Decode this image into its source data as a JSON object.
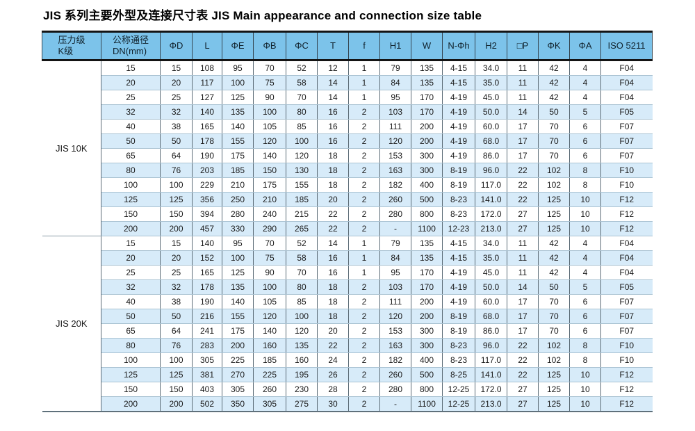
{
  "title": "JIS 系列主要外型及连接尺寸表  JIS Main appearance and connection size table",
  "colors": {
    "header_bg": "#7cc3ea",
    "stripe_bg": "#d7ebf9",
    "thick_border": "#141414",
    "grid_vertical": "#5a6a75",
    "grid_horizontal": "#a9c2d2"
  },
  "table": {
    "columns": [
      {
        "lines": [
          "压力级",
          "K级"
        ]
      },
      {
        "lines": [
          "公称通径",
          "DN(mm)"
        ]
      },
      {
        "lines": [
          "ΦD"
        ]
      },
      {
        "lines": [
          "L"
        ]
      },
      {
        "lines": [
          "ΦE"
        ]
      },
      {
        "lines": [
          "ΦB"
        ]
      },
      {
        "lines": [
          "ΦC"
        ]
      },
      {
        "lines": [
          "T"
        ]
      },
      {
        "lines": [
          "f"
        ]
      },
      {
        "lines": [
          "H1"
        ]
      },
      {
        "lines": [
          "W"
        ]
      },
      {
        "lines": [
          "N-Φh"
        ]
      },
      {
        "lines": [
          "H2"
        ]
      },
      {
        "lines": [
          "□P"
        ]
      },
      {
        "lines": [
          "ΦK"
        ]
      },
      {
        "lines": [
          "ΦA"
        ]
      },
      {
        "lines": [
          "ISO 5211"
        ]
      }
    ],
    "sections": [
      {
        "label": "JIS 10K",
        "rows": [
          [
            "15",
            "15",
            "108",
            "95",
            "70",
            "52",
            "12",
            "1",
            "79",
            "135",
            "4-15",
            "34.0",
            "11",
            "42",
            "4",
            "F04"
          ],
          [
            "20",
            "20",
            "117",
            "100",
            "75",
            "58",
            "14",
            "1",
            "84",
            "135",
            "4-15",
            "35.0",
            "11",
            "42",
            "4",
            "F04"
          ],
          [
            "25",
            "25",
            "127",
            "125",
            "90",
            "70",
            "14",
            "1",
            "95",
            "170",
            "4-19",
            "45.0",
            "11",
            "42",
            "4",
            "F04"
          ],
          [
            "32",
            "32",
            "140",
            "135",
            "100",
            "80",
            "16",
            "2",
            "103",
            "170",
            "4-19",
            "50.0",
            "14",
            "50",
            "5",
            "F05"
          ],
          [
            "40",
            "38",
            "165",
            "140",
            "105",
            "85",
            "16",
            "2",
            "111",
            "200",
            "4-19",
            "60.0",
            "17",
            "70",
            "6",
            "F07"
          ],
          [
            "50",
            "50",
            "178",
            "155",
            "120",
            "100",
            "16",
            "2",
            "120",
            "200",
            "4-19",
            "68.0",
            "17",
            "70",
            "6",
            "F07"
          ],
          [
            "65",
            "64",
            "190",
            "175",
            "140",
            "120",
            "18",
            "2",
            "153",
            "300",
            "4-19",
            "86.0",
            "17",
            "70",
            "6",
            "F07"
          ],
          [
            "80",
            "76",
            "203",
            "185",
            "150",
            "130",
            "18",
            "2",
            "163",
            "300",
            "8-19",
            "96.0",
            "22",
            "102",
            "8",
            "F10"
          ],
          [
            "100",
            "100",
            "229",
            "210",
            "175",
            "155",
            "18",
            "2",
            "182",
            "400",
            "8-19",
            "117.0",
            "22",
            "102",
            "8",
            "F10"
          ],
          [
            "125",
            "125",
            "356",
            "250",
            "210",
            "185",
            "20",
            "2",
            "260",
            "500",
            "8-23",
            "141.0",
            "22",
            "125",
            "10",
            "F12"
          ],
          [
            "150",
            "150",
            "394",
            "280",
            "240",
            "215",
            "22",
            "2",
            "280",
            "800",
            "8-23",
            "172.0",
            "27",
            "125",
            "10",
            "F12"
          ],
          [
            "200",
            "200",
            "457",
            "330",
            "290",
            "265",
            "22",
            "2",
            "-",
            "1100",
            "12-23",
            "213.0",
            "27",
            "125",
            "10",
            "F12"
          ]
        ]
      },
      {
        "label": "JIS 20K",
        "rows": [
          [
            "15",
            "15",
            "140",
            "95",
            "70",
            "52",
            "14",
            "1",
            "79",
            "135",
            "4-15",
            "34.0",
            "11",
            "42",
            "4",
            "F04"
          ],
          [
            "20",
            "20",
            "152",
            "100",
            "75",
            "58",
            "16",
            "1",
            "84",
            "135",
            "4-15",
            "35.0",
            "11",
            "42",
            "4",
            "F04"
          ],
          [
            "25",
            "25",
            "165",
            "125",
            "90",
            "70",
            "16",
            "1",
            "95",
            "170",
            "4-19",
            "45.0",
            "11",
            "42",
            "4",
            "F04"
          ],
          [
            "32",
            "32",
            "178",
            "135",
            "100",
            "80",
            "18",
            "2",
            "103",
            "170",
            "4-19",
            "50.0",
            "14",
            "50",
            "5",
            "F05"
          ],
          [
            "40",
            "38",
            "190",
            "140",
            "105",
            "85",
            "18",
            "2",
            "111",
            "200",
            "4-19",
            "60.0",
            "17",
            "70",
            "6",
            "F07"
          ],
          [
            "50",
            "50",
            "216",
            "155",
            "120",
            "100",
            "18",
            "2",
            "120",
            "200",
            "8-19",
            "68.0",
            "17",
            "70",
            "6",
            "F07"
          ],
          [
            "65",
            "64",
            "241",
            "175",
            "140",
            "120",
            "20",
            "2",
            "153",
            "300",
            "8-19",
            "86.0",
            "17",
            "70",
            "6",
            "F07"
          ],
          [
            "80",
            "76",
            "283",
            "200",
            "160",
            "135",
            "22",
            "2",
            "163",
            "300",
            "8-23",
            "96.0",
            "22",
            "102",
            "8",
            "F10"
          ],
          [
            "100",
            "100",
            "305",
            "225",
            "185",
            "160",
            "24",
            "2",
            "182",
            "400",
            "8-23",
            "117.0",
            "22",
            "102",
            "8",
            "F10"
          ],
          [
            "125",
            "125",
            "381",
            "270",
            "225",
            "195",
            "26",
            "2",
            "260",
            "500",
            "8-25",
            "141.0",
            "22",
            "125",
            "10",
            "F12"
          ],
          [
            "150",
            "150",
            "403",
            "305",
            "260",
            "230",
            "28",
            "2",
            "280",
            "800",
            "12-25",
            "172.0",
            "27",
            "125",
            "10",
            "F12"
          ],
          [
            "200",
            "200",
            "502",
            "350",
            "305",
            "275",
            "30",
            "2",
            "-",
            "1100",
            "12-25",
            "213.0",
            "27",
            "125",
            "10",
            "F12"
          ]
        ]
      }
    ]
  }
}
